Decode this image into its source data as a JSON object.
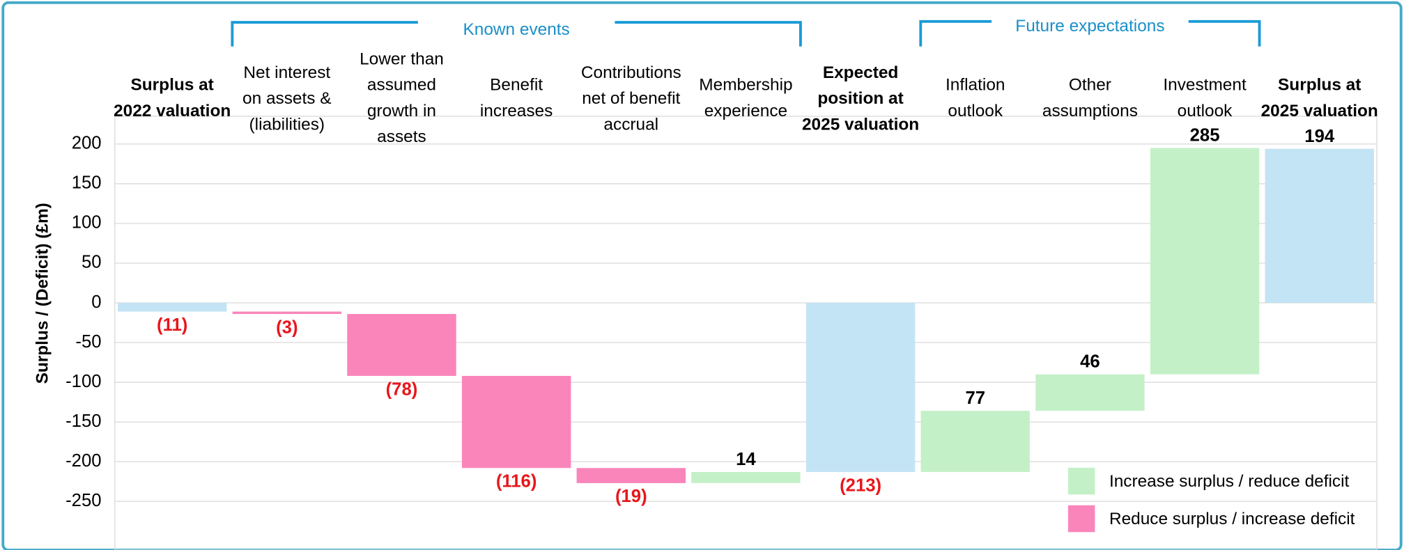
{
  "chart_data": {
    "type": "waterfall",
    "y_label": "Surplus / (Deficit) (£m)",
    "categories": [
      "Surplus at\n2022 valuation",
      "Net interest\non assets &\n(liabilities)",
      "Lower than\nassumed\ngrowth in\nassets",
      "Benefit\nincreases",
      "Contributions\nnet of benefit\naccrual",
      "Membership\nexperience",
      "Expected\nposition at\n2025 valuation",
      "Inflation\noutlook",
      "Other\nassumptions",
      "Investment\noutlook",
      "Surplus at\n2025 valuation"
    ],
    "values": [
      -11,
      -3,
      -78,
      -116,
      -19,
      14,
      -213,
      77,
      46,
      285,
      194
    ],
    "value_labels": [
      "(11)",
      "(3)",
      "(78)",
      "(116)",
      "(19)",
      "14",
      "(213)",
      "77",
      "46",
      "285",
      "194"
    ],
    "totals": [
      0,
      6,
      10
    ],
    "total_color": "#c3e4f4",
    "series": [
      {
        "name": "Increase surplus / reduce deficit",
        "color": "#c4f0c8"
      },
      {
        "name": "Reduce surplus / increase deficit",
        "color": "#f985bb"
      }
    ],
    "groups": [
      {
        "label": "Known events",
        "from": 1,
        "to": 5
      },
      {
        "label": "Future expectations",
        "from": 7,
        "to": 9
      }
    ],
    "ylim": [
      -300,
      235
    ],
    "yticks": [
      -250,
      -200,
      -150,
      -100,
      -50,
      0,
      50,
      100,
      150,
      200
    ],
    "grid": true
  }
}
